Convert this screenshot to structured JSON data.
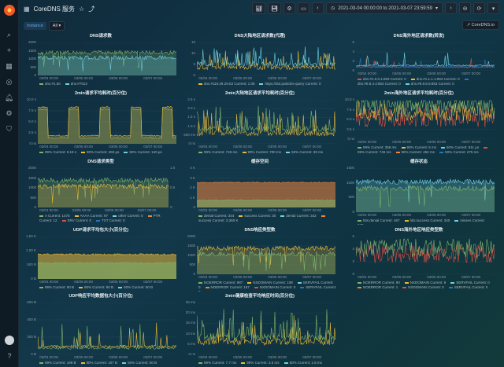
{
  "app": {
    "title": "CoreDNS 服务",
    "star_icon": "star-icon",
    "share_icon": "share-icon"
  },
  "toolbar": {
    "time_range": "2021-03-04 00:00:00 to 2021-03-07 23:59:59",
    "zoom_label": "⊖"
  },
  "variables": {
    "instance_label": "Instance",
    "instance_value": "All"
  },
  "external_link": "CoreDNS.io",
  "panels": [
    {
      "title": "DNS请求数",
      "yticks": [
        "2000",
        "1500",
        "1000",
        "500",
        "0"
      ],
      "xticks": [
        "03/04 00:00",
        "03/05 00:00",
        "03/06 00:00",
        "03/07 00:00"
      ],
      "legend": [
        [
          "dns.#1.50",
          "#7eb26d"
        ],
        [
          "dns.#7913",
          "#6ed0e0"
        ]
      ],
      "colors": [
        "#7eb26d",
        "#6ed0e0"
      ],
      "style": "band"
    },
    {
      "title": "DNS大陆地区请求数(代理)",
      "yticks": [
        "15",
        "10",
        "5",
        "0"
      ],
      "xticks": [
        "03/04 00:00",
        "03/05 00:00",
        "03/06 00:00",
        "03/07 00:00"
      ],
      "legend": [
        [
          "dns.#119.29.29.53 Current: 1.08",
          "#eab839"
        ],
        [
          "https://dot.pub/dns-query Current: 0",
          "#6ed0e0"
        ]
      ],
      "colors": [
        "#eab839",
        "#6ed0e0"
      ],
      "style": "spiky"
    },
    {
      "title": "DNS海外地区请求数(转发)",
      "yticks": [
        "6",
        "4",
        "2",
        "0"
      ],
      "xticks": [
        "03/04 00:00",
        "03/05 00:00",
        "03/06 00:00",
        "03/07 00:00"
      ],
      "legend": [
        [
          "dns.#1.0.0.1:853 Current: 0",
          "#e24d42"
        ],
        [
          "dns.#1.1.1.1:853 Current: 0",
          "#eab839"
        ],
        [
          "dns.#8.8.4.4:853 Current: 0",
          "#1f78c1"
        ],
        [
          "dns.#8.8.8.8:853 Current: 0",
          "#6ed0e0"
        ]
      ],
      "colors": [
        "#e24d42",
        "#1f78c1",
        "#6ed0e0"
      ],
      "style": "low"
    },
    {
      "title": "2min请求平均耗时(百分位)",
      "yticks": [
        "10.0 s",
        "7.5 s",
        "5.0 s",
        "2.5 s",
        "0 ns"
      ],
      "xticks": [
        "03/04 00:00",
        "03/05 00:00",
        "03/06 00:00",
        "03/07 00:00"
      ],
      "legend": [
        [
          "99% Current: 8.19 s",
          "#7eb26d"
        ],
        [
          "90% Current: 260 µs",
          "#eab839"
        ],
        [
          "50% Current: 140 µs",
          "#6ed0e0"
        ]
      ],
      "colors": [
        "#7eb26d",
        "#eab839"
      ],
      "style": "blocks"
    },
    {
      "title": "2min大陆地区请求平均耗时(百分位)",
      "yticks": [
        "2.5 s",
        "2.0 s",
        "1.5 s",
        "1.0 s",
        "500 ms",
        "0 ns"
      ],
      "xticks": [
        "03/04 00:00",
        "03/05 00:00",
        "03/06 00:00",
        "03/07 00:00"
      ],
      "legend": [
        [
          "99% Current: 745 ms",
          "#7eb26d"
        ],
        [
          "90% Current: 700 ms",
          "#eab839"
        ],
        [
          "50% Current: 30 ms",
          "#6ed0e0"
        ]
      ],
      "colors": [
        "#eab839",
        "#7eb26d"
      ],
      "style": "spiky"
    },
    {
      "title": "2min海外地区请求平均耗时(百分位)",
      "yticks": [
        "10.0 s",
        "7.5 s",
        "5.0 s",
        "2.5 s",
        "0 ns"
      ],
      "xticks": [
        "03/04 00:00",
        "03/05 00:00",
        "03/06 00:00",
        "03/07 00:00"
      ],
      "legend": [
        [
          "99% Current: 356 ms",
          "#7eb26d"
        ],
        [
          "90% Current: 5 ms",
          "#eab839"
        ],
        [
          "50% Current: 911 µs",
          "#6ed0e0"
        ],
        [
          "99% Current: 746 ms",
          "#e24d42"
        ],
        [
          "90% Current: 452 ms",
          "#ef843c"
        ],
        [
          "50% Current: 275 ms",
          "#1f78c1"
        ]
      ],
      "colors": [
        "#e24d42",
        "#eab839",
        "#7eb26d"
      ],
      "style": "dense"
    },
    {
      "title": "DNS请求类型",
      "yticks": [
        "2000",
        "1500",
        "1000",
        "500",
        "0"
      ],
      "yticks2": [
        "1.0",
        "0.5",
        "0"
      ],
      "xticks": [
        "03/04 00:00",
        "03/05 00:00",
        "03/06 00:00",
        "03/07 00:00"
      ],
      "legend": [
        [
          "A Current: 1475",
          "#7eb26d"
        ],
        [
          "AAAA Current: 97",
          "#eab839"
        ],
        [
          "other Current: 0",
          "#6ed0e0"
        ],
        [
          "PTR Current: 12",
          "#ef843c"
        ],
        [
          "SRV Current: 0",
          "#e24d42"
        ],
        [
          "TXT Current: 0",
          "#1f78c1"
        ]
      ],
      "colors": [
        "#7eb26d",
        "#eab839"
      ],
      "style": "band"
    },
    {
      "title": "缓存空间",
      "yticks": [
        "4 K",
        "3 K",
        "2 K",
        "1 K",
        "0"
      ],
      "xticks": [
        "03/04 00:00",
        "03/05 00:00",
        "03/06 00:00",
        "03/07 00:00"
      ],
      "legend": [
        [
          "denial Current: 344",
          "#7eb26d"
        ],
        [
          "success Current: 30",
          "#eab839"
        ],
        [
          "denial Current: 342",
          "#6ed0e0"
        ],
        [
          "success Current: 3,360 K",
          "#ef843c"
        ]
      ],
      "colors": [
        "#ef843c",
        "#7eb26d"
      ],
      "style": "fill"
    },
    {
      "title": "缓存状态",
      "yticks": [
        "1500",
        "1000",
        "500",
        "0"
      ],
      "xticks": [
        "03/04 00:00",
        "03/05 00:00",
        "03/06 00:00",
        "03/07 00:00"
      ],
      "legend": [
        [
          "hits:denial Current: 467",
          "#7eb26d"
        ],
        [
          "hits:success Current: 340",
          "#eab839"
        ],
        [
          "misses Current: 349",
          "#6ed0e0"
        ]
      ],
      "colors": [
        "#6ed0e0",
        "#7eb26d"
      ],
      "style": "band"
    },
    {
      "title": "UDP请求平均包大小(百分位)",
      "yticks": [
        "1.50 K",
        "1.00 K",
        "500 B",
        "0 B"
      ],
      "xticks": [
        "03/04 00:00",
        "03/05 00:00",
        "03/06 00:00",
        "03/07 00:00"
      ],
      "legend": [
        [
          "99% Current: 90 B",
          "#7eb26d"
        ],
        [
          "90% Current: 90 B",
          "#eab839"
        ],
        [
          "50% Current: 50 B",
          "#6ed0e0"
        ]
      ],
      "colors": [
        "#eab839",
        "#7eb26d"
      ],
      "style": "fill2"
    },
    {
      "title": "DNS响应类型数",
      "yticks": [
        "2000",
        "1500",
        "1000",
        "500",
        "0"
      ],
      "xticks": [
        "03/04 00:00",
        "03/05 00:00",
        "03/06 00:00",
        "03/07 00:00"
      ],
      "legend": [
        [
          "NOERROR Current: 987",
          "#7eb26d"
        ],
        [
          "NXDOMAIN Current: 108",
          "#eab839"
        ],
        [
          "SERVFAIL Current: 0",
          "#6ed0e0"
        ],
        [
          "NOERROR Current: 167",
          "#ef843c"
        ],
        [
          "NXDOMAIN Current: 0",
          "#e24d42"
        ],
        [
          "SERVFAIL Current: 0",
          "#1f78c1"
        ]
      ],
      "colors": [
        "#eab839",
        "#7eb26d"
      ],
      "style": "band"
    },
    {
      "title": "DNS海外地区响应类型数",
      "yticks": [
        "6",
        "4",
        "2",
        "0"
      ],
      "xticks": [
        "03/04 00:00",
        "03/05 00:00",
        "03/06 00:00",
        "03/07 00:00"
      ],
      "legend": [
        [
          "NOERROR Current: 90",
          "#7eb26d"
        ],
        [
          "NXDOMAIN Current: 8",
          "#eab839"
        ],
        [
          "SERVFAIL Current: 0",
          "#6ed0e0"
        ],
        [
          "NOERROR Current: 1",
          "#ef843c"
        ],
        [
          "NXDOMAIN Current: 0",
          "#e24d42"
        ],
        [
          "SERVFAIL Current: 0",
          "#1f78c1"
        ]
      ],
      "colors": [
        "#e24d42",
        "#7eb26d"
      ],
      "style": "dense"
    },
    {
      "title": "UDP响应平均数据包大小(百分位)",
      "yticks": [
        "600 B",
        "400 B",
        "200 B",
        "0 B"
      ],
      "xticks": [
        "03/04 00:00",
        "03/05 00:00",
        "03/06 00:00",
        "03/07 00:00"
      ],
      "legend": [
        [
          "99% Current: 199 B",
          "#7eb26d"
        ],
        [
          "90% Current: 107 B",
          "#eab839"
        ],
        [
          "50% Current: 50 B",
          "#6ed0e0"
        ]
      ],
      "colors": [
        "#7eb26d",
        "#eab839"
      ],
      "style": "low"
    },
    {
      "title": "2min健康检查平均响应时间(百分位)",
      "yticks": [
        "25 ms",
        "20 ms",
        "15 ms",
        "10 ms",
        "5 ms",
        "0 ns"
      ],
      "xticks": [
        "03/04 00:00",
        "03/05 00:00",
        "03/06 00:00",
        "03/07 00:00"
      ],
      "legend": [
        [
          "99% Current: 7.7 ms",
          "#7eb26d"
        ],
        [
          "90% Current: 3.5 ms",
          "#eab839"
        ],
        [
          "50% Current: 1.8 ms",
          "#6ed0e0"
        ]
      ],
      "colors": [
        "#eab839",
        "#7eb26d"
      ],
      "style": "spiky"
    }
  ]
}
